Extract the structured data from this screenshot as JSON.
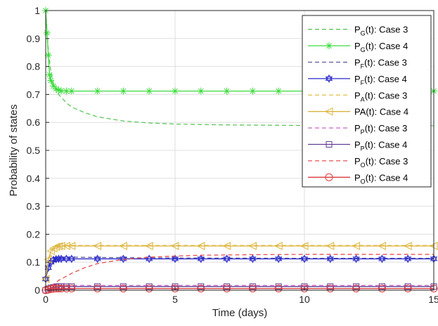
{
  "chart_data": {
    "type": "line",
    "xlabel": "Time (days)",
    "ylabel": "Probability of states",
    "xlim": [
      0,
      15
    ],
    "ylim": [
      0,
      1
    ],
    "xticks": [
      0,
      5,
      10,
      15
    ],
    "yticks": [
      0,
      0.1,
      0.2,
      0.3,
      0.4,
      0.5,
      0.6,
      0.7,
      0.8,
      0.9,
      1
    ],
    "grid": true,
    "legend_position": "top-right",
    "series": [
      {
        "name": "P_G(t): Case 3",
        "label_base": "P",
        "label_sub": "G",
        "label_rest": "(t): Case 3",
        "color": "#5ac85a",
        "line": "dashed",
        "marker": "none",
        "x": [
          0,
          0.05,
          0.1,
          0.2,
          0.3,
          0.5,
          0.8,
          1,
          1.5,
          2,
          3,
          4,
          5,
          7,
          10,
          12,
          15
        ],
        "y": [
          1,
          0.93,
          0.86,
          0.78,
          0.74,
          0.7,
          0.67,
          0.655,
          0.635,
          0.62,
          0.605,
          0.598,
          0.594,
          0.591,
          0.589,
          0.588,
          0.588
        ]
      },
      {
        "name": "P_G(t): Case 4",
        "label_base": "P",
        "label_sub": "G",
        "label_rest": "(t): Case 4",
        "color": "#3cdc3c",
        "line": "solid",
        "marker": "star",
        "x": [
          0,
          0.05,
          0.1,
          0.15,
          0.2,
          0.3,
          0.4,
          0.5,
          0.6,
          0.8,
          1,
          2,
          3,
          4,
          5,
          6,
          7,
          8,
          9,
          10,
          11,
          12,
          13,
          14,
          15
        ],
        "y": [
          1,
          0.92,
          0.84,
          0.77,
          0.75,
          0.73,
          0.72,
          0.715,
          0.713,
          0.712,
          0.712,
          0.712,
          0.712,
          0.712,
          0.712,
          0.712,
          0.712,
          0.712,
          0.712,
          0.712,
          0.712,
          0.712,
          0.712,
          0.712,
          0.712
        ]
      },
      {
        "name": "P_F(t): Case 3",
        "label_base": "P",
        "label_sub": "F",
        "label_rest": "(t): Case 3",
        "color": "#5a5aa0",
        "line": "dashed",
        "marker": "none",
        "x": [
          0,
          0.1,
          0.2,
          0.3,
          0.5,
          0.8,
          1,
          2,
          5,
          10,
          15
        ],
        "y": [
          0.04,
          0.08,
          0.1,
          0.11,
          0.116,
          0.118,
          0.118,
          0.117,
          0.115,
          0.114,
          0.114
        ]
      },
      {
        "name": "P_F(t): Case 4",
        "label_base": "P",
        "label_sub": "F",
        "label_rest": "(t): Case 4",
        "color": "#2828c8",
        "line": "solid",
        "marker": "hexagram",
        "x": [
          0,
          0.1,
          0.2,
          0.3,
          0.4,
          0.5,
          0.6,
          0.8,
          1,
          2,
          3,
          4,
          5,
          6,
          7,
          8,
          9,
          10,
          11,
          12,
          13,
          14,
          15
        ],
        "y": [
          0.04,
          0.08,
          0.1,
          0.108,
          0.111,
          0.112,
          0.112,
          0.112,
          0.112,
          0.112,
          0.112,
          0.112,
          0.112,
          0.112,
          0.112,
          0.112,
          0.112,
          0.112,
          0.112,
          0.112,
          0.112,
          0.112,
          0.112
        ]
      },
      {
        "name": "P_A(t): Case 3",
        "label_base": "P",
        "label_sub": "A",
        "label_rest": "(t): Case 3",
        "color": "#e6c35a",
        "line": "dashed",
        "marker": "none",
        "x": [
          0,
          0.1,
          0.2,
          0.3,
          0.5,
          0.8,
          1,
          2,
          5,
          10,
          15
        ],
        "y": [
          0.04,
          0.1,
          0.13,
          0.145,
          0.155,
          0.16,
          0.16,
          0.16,
          0.16,
          0.16,
          0.16
        ]
      },
      {
        "name": "PA(t): Case 4",
        "label_base": "PA(t): Case 4",
        "label_sub": "",
        "label_rest": "",
        "color": "#dcb43c",
        "line": "solid",
        "marker": "triangle-left",
        "x": [
          0,
          0.1,
          0.2,
          0.3,
          0.4,
          0.5,
          0.6,
          0.8,
          1,
          2,
          3,
          4,
          5,
          6,
          7,
          8,
          9,
          10,
          11,
          12,
          13,
          14,
          15
        ],
        "y": [
          0.04,
          0.11,
          0.14,
          0.15,
          0.155,
          0.157,
          0.158,
          0.158,
          0.158,
          0.158,
          0.158,
          0.158,
          0.158,
          0.158,
          0.158,
          0.158,
          0.158,
          0.158,
          0.158,
          0.158,
          0.158,
          0.158,
          0.158
        ]
      },
      {
        "name": "P_P(t): Case 3",
        "label_base": "P",
        "label_sub": "P",
        "label_rest": "(t): Case 3",
        "color": "#c864c8",
        "line": "dashed",
        "marker": "none",
        "x": [
          0,
          0.2,
          0.5,
          1,
          2,
          5,
          10,
          15
        ],
        "y": [
          0.0,
          0.01,
          0.015,
          0.017,
          0.017,
          0.017,
          0.017,
          0.017
        ]
      },
      {
        "name": "P_P(t): Case 4",
        "label_base": "P",
        "label_sub": "P",
        "label_rest": "(t): Case 4",
        "color": "#643c96",
        "line": "solid",
        "marker": "square",
        "x": [
          0,
          0.1,
          0.2,
          0.3,
          0.4,
          0.5,
          0.6,
          0.8,
          1,
          2,
          3,
          4,
          5,
          6,
          7,
          8,
          9,
          10,
          11,
          12,
          13,
          14,
          15
        ],
        "y": [
          0.0,
          0.005,
          0.008,
          0.01,
          0.012,
          0.013,
          0.013,
          0.013,
          0.013,
          0.013,
          0.013,
          0.013,
          0.013,
          0.013,
          0.013,
          0.013,
          0.013,
          0.013,
          0.013,
          0.013,
          0.013,
          0.013,
          0.013
        ]
      },
      {
        "name": "P_O(t): Case 3",
        "label_base": "P",
        "label_sub": "O",
        "label_rest": "(t): Case 3",
        "color": "#e65050",
        "line": "dashed",
        "marker": "none",
        "x": [
          0,
          0.5,
          1,
          1.5,
          2,
          3,
          4,
          5,
          6,
          8,
          10,
          12,
          15
        ],
        "y": [
          0.0,
          0.035,
          0.06,
          0.08,
          0.095,
          0.11,
          0.118,
          0.122,
          0.125,
          0.127,
          0.128,
          0.128,
          0.128
        ]
      },
      {
        "name": "P_O(t): Case 4",
        "label_base": "P",
        "label_sub": "O",
        "label_rest": "(t): Case 4",
        "color": "#dc3c3c",
        "line": "solid",
        "marker": "circle",
        "x": [
          0,
          0.1,
          0.2,
          0.3,
          0.4,
          0.5,
          0.6,
          0.8,
          1,
          2,
          3,
          4,
          5,
          6,
          7,
          8,
          9,
          10,
          11,
          12,
          13,
          14,
          15
        ],
        "y": [
          0.0,
          0.002,
          0.004,
          0.005,
          0.006,
          0.006,
          0.006,
          0.006,
          0.006,
          0.006,
          0.006,
          0.006,
          0.006,
          0.006,
          0.006,
          0.006,
          0.006,
          0.006,
          0.006,
          0.006,
          0.006,
          0.006,
          0.006
        ]
      }
    ]
  }
}
